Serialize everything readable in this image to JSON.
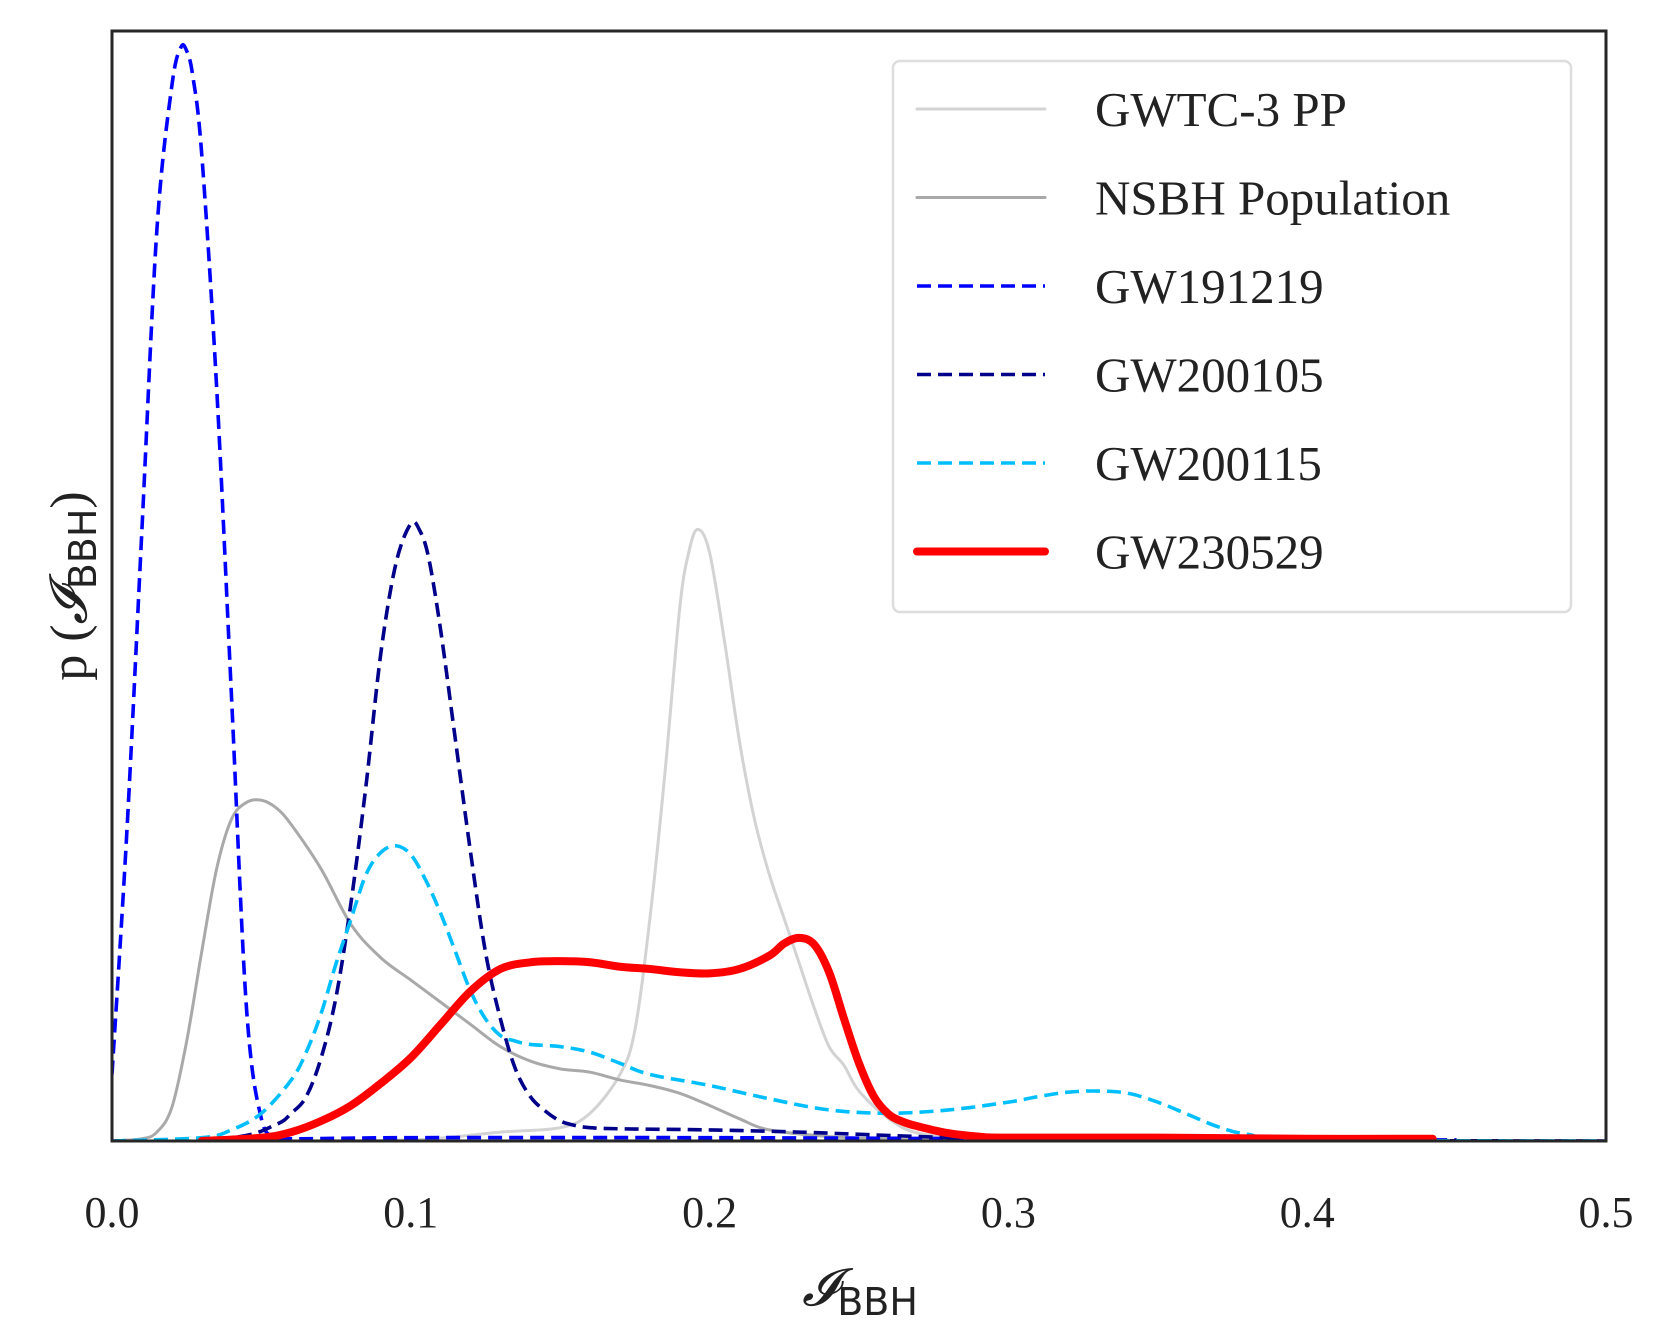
{
  "chart_data": {
    "type": "line",
    "title": "",
    "xlabel": {
      "main": "𝓘",
      "sub": "BBH"
    },
    "ylabel": {
      "prefix": "p (",
      "main": "𝓘",
      "sub": "BBH",
      "suffix": ")"
    },
    "xlim": [
      0.0,
      0.5
    ],
    "ylim": [
      0.0,
      1.0
    ],
    "xticks": [
      "0.0",
      "0.1",
      "0.2",
      "0.3",
      "0.4",
      "0.5"
    ],
    "yticks": [],
    "grid": false,
    "legend_position": "upper right",
    "series": [
      {
        "name": "GWTC-3 PP",
        "color": "#d3d3d3",
        "dash": "solid",
        "width": "thin",
        "x": [
          0.0,
          0.05,
          0.1,
          0.13,
          0.15,
          0.16,
          0.17,
          0.175,
          0.18,
          0.185,
          0.19,
          0.193,
          0.196,
          0.2,
          0.205,
          0.21,
          0.215,
          0.22,
          0.225,
          0.23,
          0.235,
          0.24,
          0.245,
          0.25,
          0.26,
          0.27,
          0.29,
          0.32,
          0.5
        ],
        "y": [
          0.0,
          0.0,
          0.001,
          0.008,
          0.012,
          0.025,
          0.06,
          0.1,
          0.2,
          0.33,
          0.48,
          0.53,
          0.551,
          0.53,
          0.45,
          0.36,
          0.29,
          0.24,
          0.2,
          0.16,
          0.12,
          0.085,
          0.068,
          0.045,
          0.02,
          0.007,
          0.002,
          0.0,
          0.0
        ]
      },
      {
        "name": "NSBH Population",
        "color": "#a9a9a9",
        "dash": "solid",
        "width": "thin",
        "x": [
          0.0,
          0.01,
          0.015,
          0.02,
          0.025,
          0.03,
          0.035,
          0.04,
          0.045,
          0.05,
          0.055,
          0.06,
          0.07,
          0.08,
          0.09,
          0.1,
          0.11,
          0.12,
          0.13,
          0.14,
          0.15,
          0.16,
          0.17,
          0.18,
          0.19,
          0.2,
          0.21,
          0.22,
          0.24,
          0.26,
          0.3,
          0.5
        ],
        "y": [
          0.0,
          0.002,
          0.008,
          0.03,
          0.09,
          0.17,
          0.245,
          0.29,
          0.305,
          0.307,
          0.3,
          0.285,
          0.245,
          0.195,
          0.165,
          0.145,
          0.125,
          0.105,
          0.085,
          0.072,
          0.065,
          0.062,
          0.055,
          0.05,
          0.043,
          0.032,
          0.02,
          0.01,
          0.004,
          0.002,
          0.0,
          0.0
        ]
      },
      {
        "name": "GW191219",
        "color": "#0000ff",
        "dash": "dashed",
        "width": "medium",
        "x": [
          0.0,
          0.005,
          0.01,
          0.015,
          0.02,
          0.023,
          0.025,
          0.027,
          0.03,
          0.035,
          0.04,
          0.045,
          0.05,
          0.055,
          0.06,
          0.1,
          0.2,
          0.3,
          0.4,
          0.45
        ],
        "y": [
          0.06,
          0.28,
          0.55,
          0.82,
          0.95,
          0.985,
          0.982,
          0.96,
          0.89,
          0.68,
          0.4,
          0.12,
          0.02,
          0.004,
          0.002,
          0.003,
          0.003,
          0.002,
          0.001,
          0.001
        ]
      },
      {
        "name": "GW200105",
        "color": "#00008b",
        "dash": "dashed",
        "width": "medium",
        "x": [
          0.0,
          0.04,
          0.055,
          0.06,
          0.065,
          0.07,
          0.075,
          0.08,
          0.085,
          0.09,
          0.095,
          0.1,
          0.103,
          0.106,
          0.11,
          0.115,
          0.12,
          0.125,
          0.13,
          0.135,
          0.14,
          0.145,
          0.15,
          0.155,
          0.16,
          0.17,
          0.2,
          0.23,
          0.25,
          0.28,
          0.3,
          0.5
        ],
        "y": [
          0.0,
          0.003,
          0.015,
          0.025,
          0.04,
          0.075,
          0.13,
          0.215,
          0.32,
          0.44,
          0.52,
          0.556,
          0.55,
          0.525,
          0.46,
          0.36,
          0.26,
          0.17,
          0.11,
          0.065,
          0.04,
          0.027,
          0.018,
          0.014,
          0.012,
          0.011,
          0.01,
          0.008,
          0.006,
          0.003,
          0.001,
          0.0
        ]
      },
      {
        "name": "GW200115",
        "color": "#00bfff",
        "dash": "dashed",
        "width": "medium",
        "x": [
          0.0,
          0.03,
          0.04,
          0.05,
          0.06,
          0.065,
          0.07,
          0.075,
          0.08,
          0.085,
          0.09,
          0.095,
          0.1,
          0.105,
          0.11,
          0.115,
          0.12,
          0.125,
          0.13,
          0.135,
          0.14,
          0.15,
          0.16,
          0.17,
          0.18,
          0.2,
          0.22,
          0.24,
          0.26,
          0.28,
          0.3,
          0.31,
          0.32,
          0.33,
          0.34,
          0.35,
          0.36,
          0.37,
          0.38,
          0.4,
          0.5
        ],
        "y": [
          0.0,
          0.003,
          0.01,
          0.025,
          0.055,
          0.08,
          0.115,
          0.16,
          0.2,
          0.24,
          0.26,
          0.266,
          0.258,
          0.235,
          0.205,
          0.17,
          0.135,
          0.11,
          0.095,
          0.09,
          0.087,
          0.085,
          0.08,
          0.07,
          0.06,
          0.05,
          0.038,
          0.028,
          0.025,
          0.028,
          0.035,
          0.04,
          0.044,
          0.045,
          0.043,
          0.035,
          0.024,
          0.013,
          0.006,
          0.001,
          0.0
        ]
      },
      {
        "name": "GW230529",
        "color": "#ff0000",
        "dash": "solid",
        "width": "thick",
        "x": [
          0.03,
          0.05,
          0.06,
          0.07,
          0.08,
          0.09,
          0.1,
          0.11,
          0.12,
          0.13,
          0.14,
          0.15,
          0.16,
          0.17,
          0.18,
          0.19,
          0.2,
          0.21,
          0.22,
          0.225,
          0.23,
          0.235,
          0.24,
          0.245,
          0.25,
          0.255,
          0.26,
          0.265,
          0.27,
          0.28,
          0.29,
          0.3,
          0.35,
          0.4,
          0.442
        ],
        "y": [
          0.0,
          0.003,
          0.008,
          0.018,
          0.032,
          0.052,
          0.075,
          0.105,
          0.135,
          0.155,
          0.161,
          0.162,
          0.161,
          0.157,
          0.155,
          0.152,
          0.151,
          0.155,
          0.167,
          0.178,
          0.183,
          0.177,
          0.152,
          0.11,
          0.07,
          0.04,
          0.024,
          0.017,
          0.013,
          0.007,
          0.004,
          0.003,
          0.003,
          0.002,
          0.002
        ]
      }
    ]
  }
}
